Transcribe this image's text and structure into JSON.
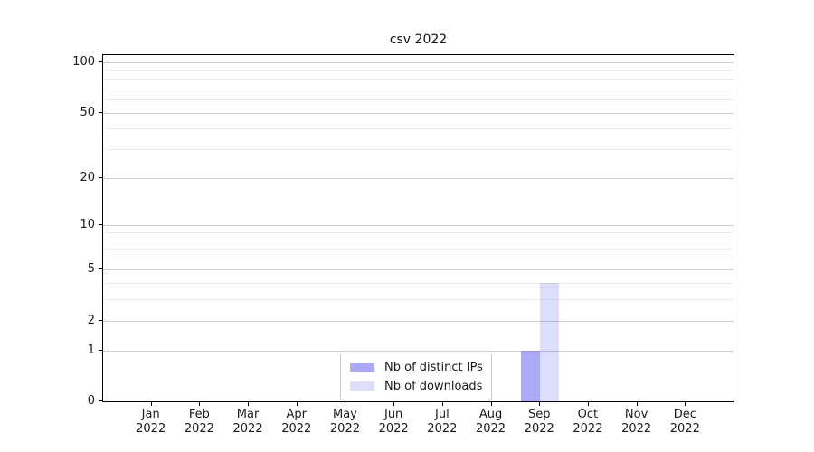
{
  "figure": {
    "background": "#ffffff"
  },
  "chart_data": {
    "type": "bar",
    "title": "csv 2022",
    "categories": [
      "Jan 2022",
      "Feb 2022",
      "Mar 2022",
      "Apr 2022",
      "May 2022",
      "Jun 2022",
      "Jul 2022",
      "Aug 2022",
      "Sep 2022",
      "Oct 2022",
      "Nov 2022",
      "Dec 2022"
    ],
    "series": [
      {
        "name": "Nb of distinct IPs",
        "color": "rgba(85,85,238,0.5)",
        "values": [
          0,
          0,
          0,
          0,
          0,
          0,
          0,
          0,
          1,
          0,
          0,
          0
        ]
      },
      {
        "name": "Nb of downloads",
        "color": "rgba(85,85,238,0.2)",
        "values": [
          0,
          0,
          0,
          0,
          0,
          0,
          0,
          0,
          4,
          0,
          0,
          0
        ]
      }
    ],
    "xlabel": "",
    "ylabel": "",
    "yscale": "log10(1+x)",
    "ylim": [
      0,
      112
    ],
    "y_major_ticks": [
      0,
      1,
      2,
      5,
      10,
      20,
      50,
      100
    ],
    "y_minor_gridlines": [
      3,
      4,
      6,
      7,
      8,
      9,
      30,
      40,
      60,
      70,
      80,
      90
    ],
    "grid": true,
    "legend_position": "lower center"
  },
  "colors": {
    "major_grid": "#d0d0d0",
    "minor_grid": "#ececec",
    "axis": "#000000",
    "text": "#1a1a1a"
  }
}
